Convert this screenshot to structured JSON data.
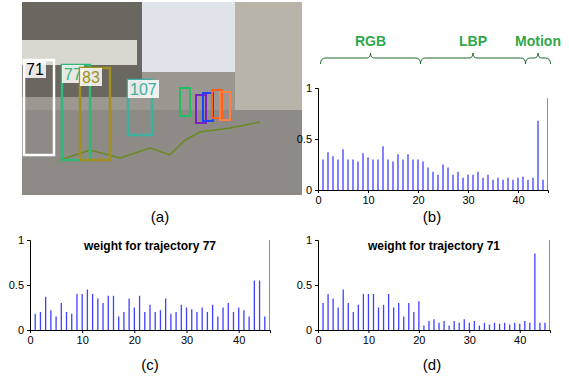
{
  "photo": {
    "caption": "(a)",
    "tracks": [
      {
        "label": "71"
      },
      {
        "label": "77"
      },
      {
        "label": "83"
      },
      {
        "label": "107"
      }
    ]
  },
  "chart_data": [
    {
      "type": "stem",
      "caption": "(b)",
      "color": "#4040ff",
      "annotations": [
        {
          "text": "RGB",
          "x": [
            1,
            20
          ]
        },
        {
          "text": "LBP",
          "x": [
            21,
            41
          ]
        },
        {
          "text": "Motion",
          "x": [
            42,
            46
          ]
        }
      ],
      "x": [
        1,
        2,
        3,
        4,
        5,
        6,
        7,
        8,
        9,
        10,
        11,
        12,
        13,
        14,
        15,
        16,
        17,
        18,
        19,
        20,
        21,
        22,
        23,
        24,
        25,
        26,
        27,
        28,
        29,
        30,
        31,
        32,
        33,
        34,
        35,
        36,
        37,
        38,
        39,
        40,
        41,
        42,
        43,
        44,
        45,
        46
      ],
      "values": [
        0.3,
        0.37,
        0.33,
        0.3,
        0.4,
        0.3,
        0.3,
        0.28,
        0.36,
        0.32,
        0.3,
        0.3,
        0.43,
        0.3,
        0.28,
        0.35,
        0.3,
        0.35,
        0.3,
        0.3,
        0.28,
        0.22,
        0.18,
        0.15,
        0.25,
        0.22,
        0.15,
        0.18,
        0.12,
        0.15,
        0.15,
        0.18,
        0.12,
        0.15,
        0.1,
        0.12,
        0.1,
        0.12,
        0.1,
        0.12,
        0.13,
        0.1,
        0.12,
        0.68,
        0.1,
        0.9
      ],
      "xlim": [
        0,
        46
      ],
      "ylim": [
        0,
        1
      ],
      "xticks": [
        0,
        10,
        20,
        30,
        40
      ],
      "yticks": [
        0,
        0.5,
        1
      ]
    },
    {
      "type": "stem",
      "caption": "(c)",
      "title": "weight for trajectory 77",
      "color": "#4040ff",
      "x": [
        1,
        2,
        3,
        4,
        5,
        6,
        7,
        8,
        9,
        10,
        11,
        12,
        13,
        14,
        15,
        16,
        17,
        18,
        19,
        20,
        21,
        22,
        23,
        24,
        25,
        26,
        27,
        28,
        29,
        30,
        31,
        32,
        33,
        34,
        35,
        36,
        37,
        38,
        39,
        40,
        41,
        42,
        43,
        44,
        45,
        46
      ],
      "values": [
        0.18,
        0.2,
        0.37,
        0.22,
        0.15,
        0.3,
        0.2,
        0.18,
        0.4,
        0.4,
        0.45,
        0.4,
        0.35,
        0.3,
        0.38,
        0.38,
        0.15,
        0.2,
        0.35,
        0.25,
        0.38,
        0.2,
        0.28,
        0.2,
        0.22,
        0.35,
        0.18,
        0.2,
        0.28,
        0.25,
        0.23,
        0.2,
        0.25,
        0.2,
        0.28,
        0.15,
        0.25,
        0.3,
        0.2,
        0.25,
        0.22,
        0.15,
        0.55,
        0.55,
        0.15,
        1.0
      ],
      "xlim": [
        0,
        46
      ],
      "ylim": [
        0,
        1
      ],
      "xticks": [
        0,
        10,
        20,
        30,
        40
      ],
      "yticks": [
        0,
        0.5,
        1
      ]
    },
    {
      "type": "stem",
      "caption": "(d)",
      "title": "weight for trajectory 71",
      "color": "#4040ff",
      "x": [
        1,
        2,
        3,
        4,
        5,
        6,
        7,
        8,
        9,
        10,
        11,
        12,
        13,
        14,
        15,
        16,
        17,
        18,
        19,
        20,
        21,
        22,
        23,
        24,
        25,
        26,
        27,
        28,
        29,
        30,
        31,
        32,
        33,
        34,
        35,
        36,
        37,
        38,
        39,
        40,
        41,
        42,
        43,
        44,
        45,
        46
      ],
      "values": [
        0.3,
        0.4,
        0.35,
        0.25,
        0.45,
        0.3,
        0.2,
        0.28,
        0.4,
        0.4,
        0.4,
        0.25,
        0.28,
        0.4,
        0.25,
        0.3,
        0.15,
        0.3,
        0.2,
        0.32,
        0.05,
        0.1,
        0.12,
        0.08,
        0.1,
        0.05,
        0.1,
        0.08,
        0.12,
        0.08,
        0.1,
        0.05,
        0.08,
        0.06,
        0.08,
        0.07,
        0.08,
        0.06,
        0.08,
        0.07,
        0.1,
        0.08,
        0.85,
        0.08,
        0.08,
        1.0
      ],
      "xlim": [
        0,
        46
      ],
      "ylim": [
        0,
        1
      ],
      "xticks": [
        0,
        10,
        20,
        30,
        40
      ],
      "yticks": [
        0,
        0.5,
        1
      ]
    }
  ]
}
